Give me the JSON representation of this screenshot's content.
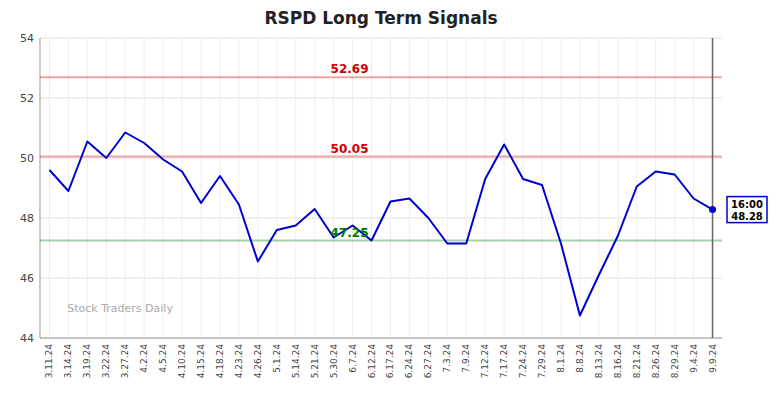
{
  "chart_data": {
    "type": "line",
    "title": "RSPD Long Term Signals",
    "categories": [
      "3.11.24",
      "3.14.24",
      "3.19.24",
      "3.22.24",
      "3.27.24",
      "4.2.24",
      "4.5.24",
      "4.10.24",
      "4.15.24",
      "4.18.24",
      "4.23.24",
      "4.26.24",
      "5.1.24",
      "5.14.24",
      "5.21.24",
      "5.30.24",
      "6.7.24",
      "6.12.24",
      "6.17.24",
      "6.24.24",
      "6.27.24",
      "7.3.24",
      "7.9.24",
      "7.12.24",
      "7.17.24",
      "7.24.24",
      "7.29.24",
      "8.1.24",
      "8.8.24",
      "8.13.24",
      "8.16.24",
      "8.21.24",
      "8.26.24",
      "8.29.24",
      "9.4.24",
      "9.9.24"
    ],
    "values": [
      49.6,
      48.9,
      50.55,
      50.0,
      50.85,
      50.5,
      49.95,
      49.55,
      48.5,
      49.4,
      48.45,
      46.55,
      47.6,
      47.75,
      48.3,
      47.35,
      47.75,
      47.25,
      48.55,
      48.65,
      48.0,
      47.15,
      47.15,
      49.3,
      50.45,
      49.3,
      49.1,
      47.15,
      44.75,
      46.1,
      47.4,
      49.05,
      49.55,
      49.45,
      48.65,
      48.28
    ],
    "color": "#0000cc",
    "reference_lines": [
      {
        "value": 52.69,
        "color": "#cc0000"
      },
      {
        "value": 50.05,
        "color": "#cc0000"
      },
      {
        "value": 47.25,
        "color": "#007700"
      }
    ],
    "end_label": {
      "time": "16:00",
      "value": 48.28
    },
    "watermark": "Stock Traders Daily",
    "ylim": [
      44,
      54
    ],
    "yticks": [
      44,
      46,
      48,
      50,
      52,
      54
    ],
    "grid": true
  }
}
